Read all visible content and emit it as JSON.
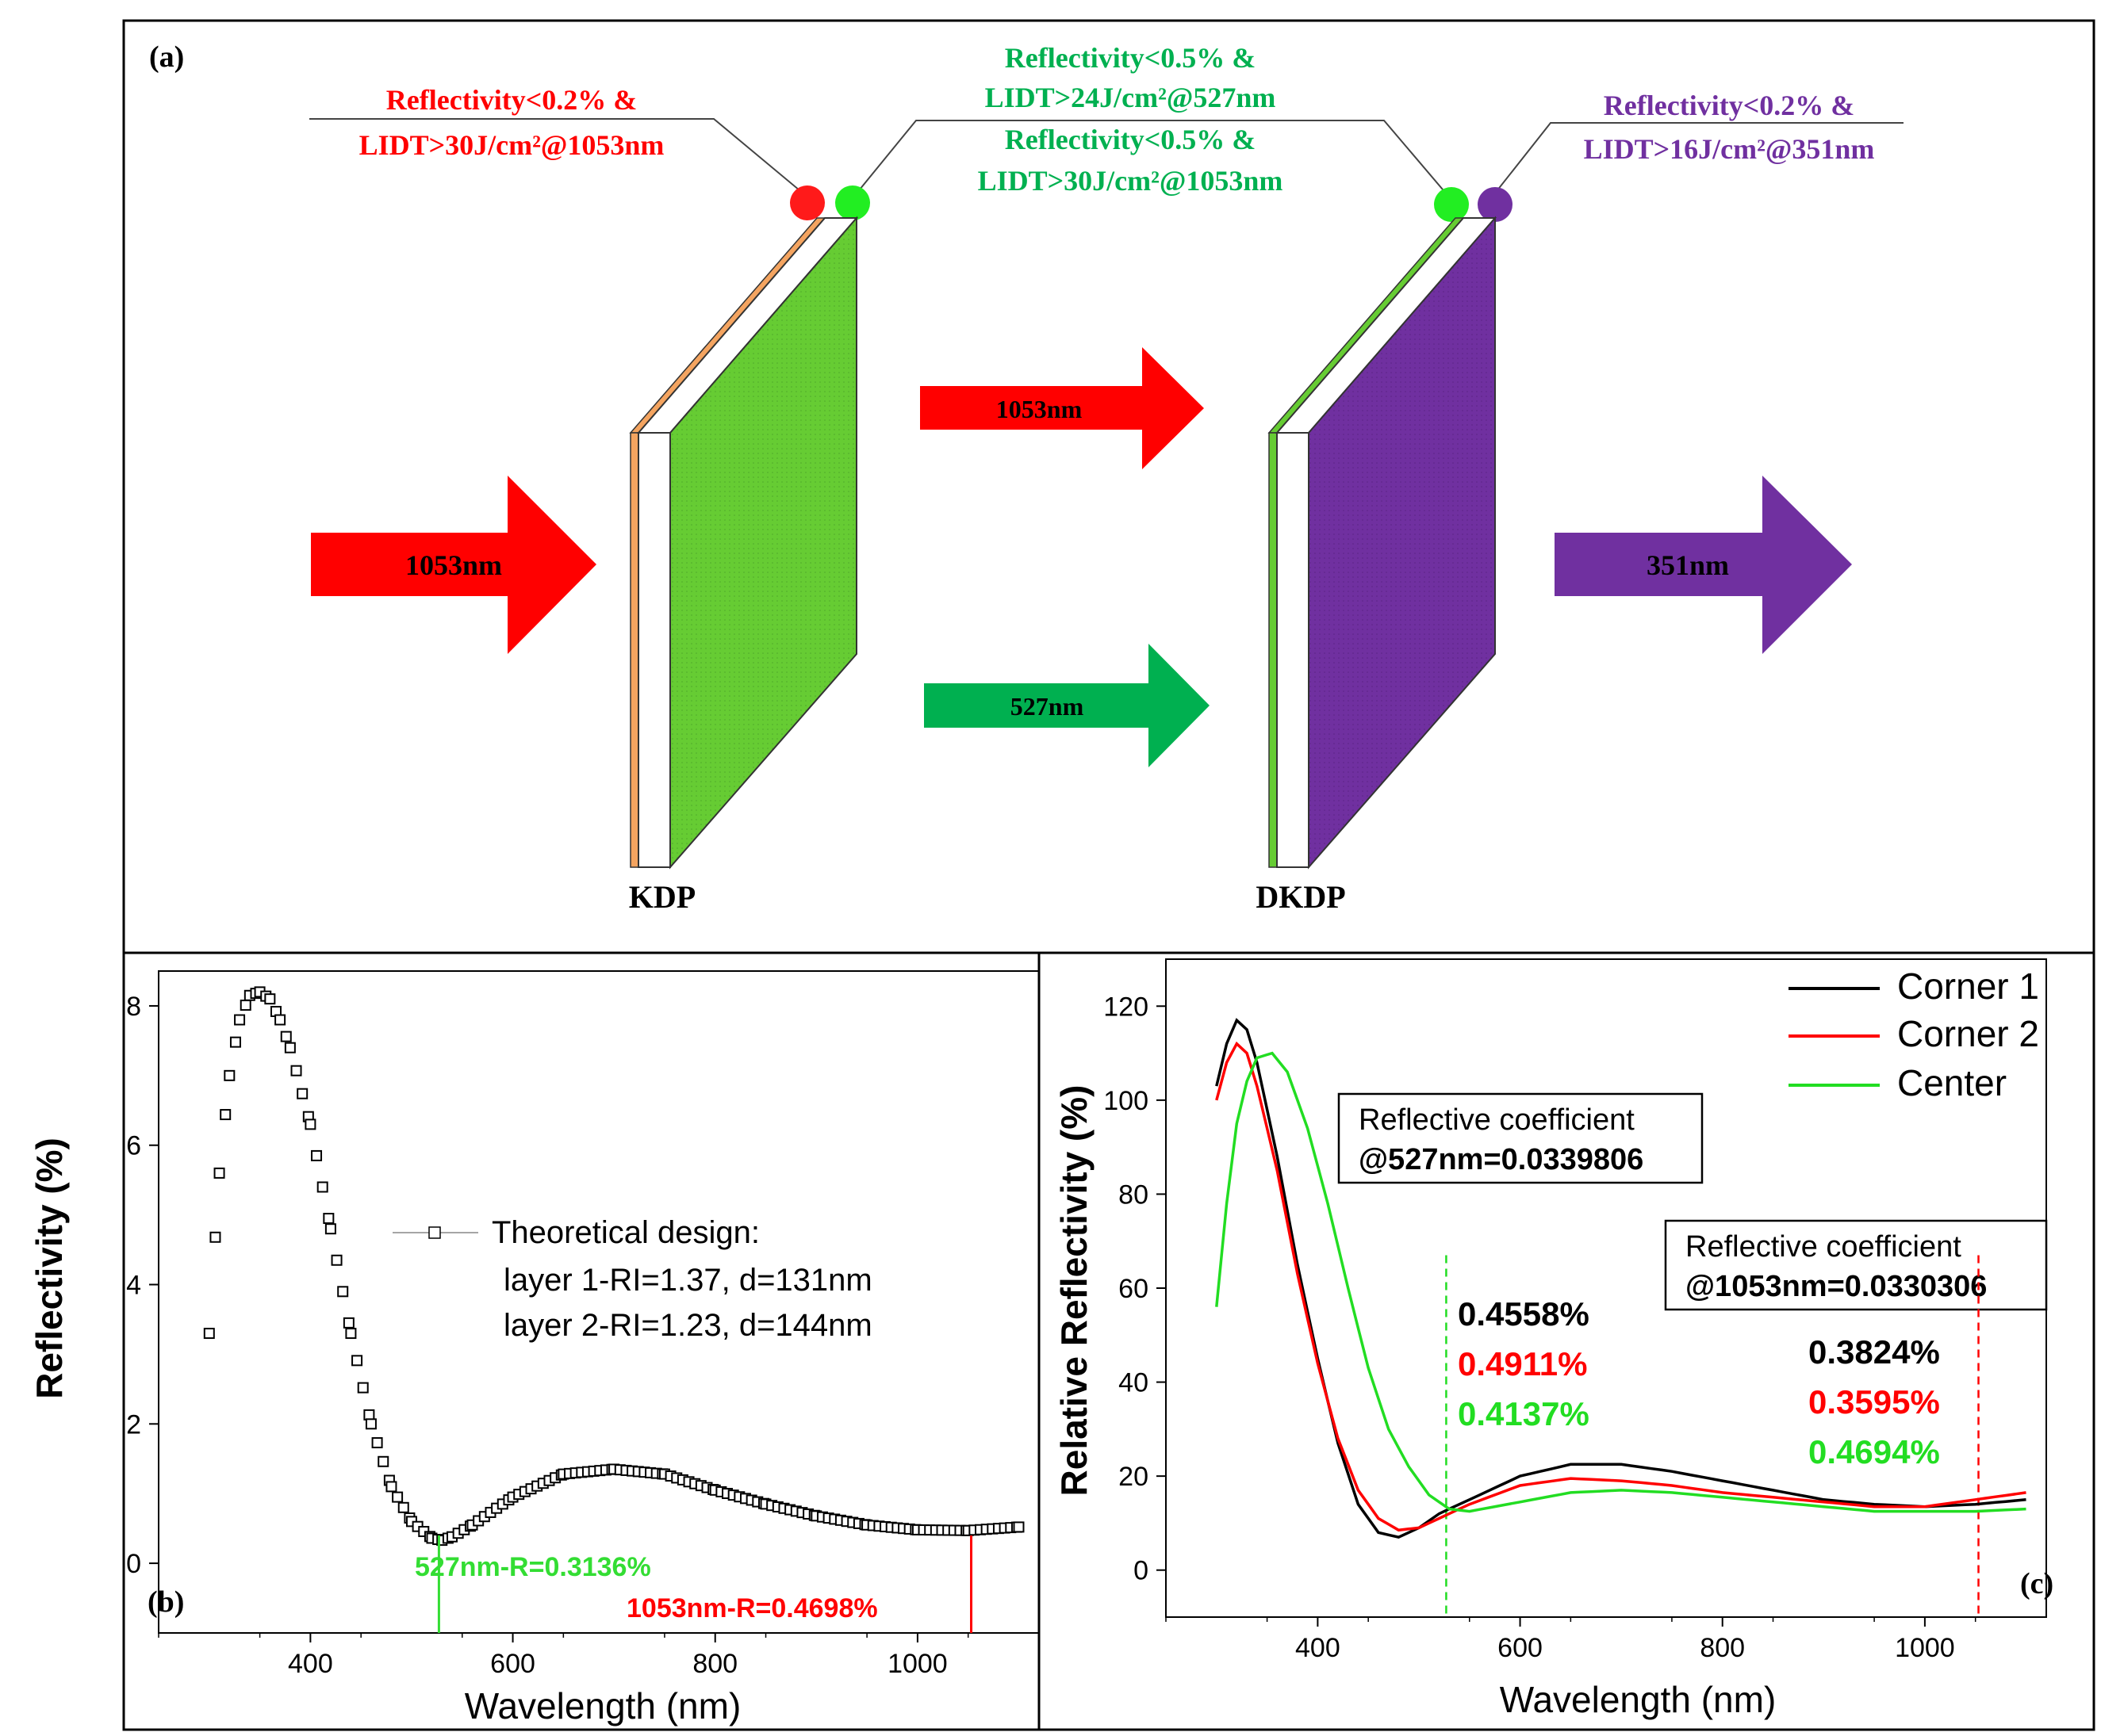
{
  "panel_a": {
    "label": "(a)",
    "kdp_label": "KDP",
    "dkdp_label": "DKDP",
    "ann_left": [
      "Reflectivity<0.2% &",
      "LIDT>30J/cm²@1053nm"
    ],
    "ann_mid": [
      "Reflectivity<0.5% &",
      "LIDT>24J/cm²@527nm",
      "Reflectivity<0.5% &",
      "LIDT>30J/cm²@1053nm"
    ],
    "ann_right": [
      "Reflectivity<0.2% &",
      "LIDT>16J/cm²@351nm"
    ],
    "arrow_in": "1053nm",
    "arrow_mid_top": "1053nm",
    "arrow_mid_bottom": "527nm",
    "arrow_out": "351nm",
    "colors": {
      "red": "#ff0000",
      "green": "#00b050",
      "lightgreen": "#66cc33",
      "purple": "#7030a0",
      "orange": "#f4a460"
    }
  },
  "chart_data": [
    {
      "type": "scatter",
      "panel_label": "(b)",
      "xlabel": "Wavelength (nm)",
      "ylabel": "Reflectivity (%)",
      "xlim": [
        250,
        1120
      ],
      "ylim": [
        -1,
        8.5
      ],
      "xticks": [
        400,
        600,
        800,
        1000
      ],
      "yticks": [
        0,
        2,
        4,
        6,
        8
      ],
      "legend": [
        "Theoretical design:",
        "layer 1-RI=1.37, d=131nm",
        "layer 2-RI=1.23, d=144nm"
      ],
      "series": [
        {
          "name": "Theoretical design",
          "x": [
            300,
            310,
            320,
            330,
            340,
            350,
            360,
            370,
            380,
            400,
            420,
            440,
            460,
            480,
            500,
            520,
            530,
            540,
            560,
            600,
            650,
            700,
            750,
            800,
            850,
            900,
            950,
            1000,
            1050,
            1100
          ],
          "y": [
            3.3,
            5.6,
            7.0,
            7.8,
            8.15,
            8.2,
            8.1,
            7.8,
            7.4,
            6.3,
            4.8,
            3.3,
            2.0,
            1.1,
            0.6,
            0.36,
            0.33,
            0.38,
            0.55,
            0.95,
            1.28,
            1.35,
            1.28,
            1.05,
            0.85,
            0.68,
            0.55,
            0.48,
            0.47,
            0.52
          ]
        }
      ],
      "markers": [
        {
          "x": 527,
          "label": "527nm-R=0.3136%",
          "color": "#33dd33"
        },
        {
          "x": 1053,
          "label": "1053nm-R=0.4698%",
          "color": "#ff0000"
        }
      ]
    },
    {
      "type": "line",
      "panel_label": "(c)",
      "xlabel": "Wavelength (nm)",
      "ylabel": "Relative Reflectivity (%)",
      "xlim": [
        250,
        1120
      ],
      "ylim": [
        -10,
        130
      ],
      "xticks": [
        400,
        600,
        800,
        1000
      ],
      "yticks": [
        0,
        20,
        40,
        60,
        80,
        100,
        120
      ],
      "series": [
        {
          "name": "Corner 1",
          "color": "#000000",
          "x": [
            300,
            310,
            320,
            330,
            340,
            360,
            380,
            400,
            420,
            440,
            460,
            480,
            500,
            520,
            550,
            600,
            650,
            700,
            750,
            800,
            850,
            900,
            950,
            1000,
            1050,
            1100
          ],
          "y": [
            103,
            112,
            117,
            115,
            108,
            88,
            65,
            45,
            27,
            14,
            8,
            7,
            9,
            12,
            15,
            20,
            22.5,
            22.5,
            21,
            19,
            17,
            15,
            14,
            13.5,
            14,
            15
          ]
        },
        {
          "name": "Corner 2",
          "color": "#ff0000",
          "x": [
            300,
            310,
            320,
            330,
            340,
            360,
            380,
            400,
            420,
            440,
            460,
            480,
            500,
            520,
            550,
            600,
            650,
            700,
            750,
            800,
            850,
            900,
            950,
            1000,
            1050,
            1100
          ],
          "y": [
            100,
            108,
            112,
            110,
            103,
            85,
            63,
            44,
            28,
            17,
            11,
            8.5,
            9,
            11,
            14,
            18,
            19.5,
            19,
            18,
            16.5,
            15.5,
            14.5,
            13.5,
            13.5,
            15,
            16.5
          ]
        },
        {
          "name": "Center",
          "color": "#22dd22",
          "x": [
            300,
            310,
            320,
            330,
            340,
            355,
            370,
            390,
            410,
            430,
            450,
            470,
            490,
            510,
            530,
            550,
            600,
            650,
            700,
            750,
            800,
            850,
            900,
            950,
            1000,
            1050,
            1100
          ],
          "y": [
            56,
            78,
            95,
            104,
            109,
            110,
            106,
            94,
            78,
            60,
            43,
            30,
            22,
            16,
            13,
            12.5,
            14.5,
            16.5,
            17,
            16.5,
            15.5,
            14.5,
            13.5,
            12.5,
            12.5,
            12.5,
            13
          ]
        }
      ],
      "legend_position": "top-right",
      "coef_boxes": [
        {
          "line1": "Reflective coefficient",
          "line2": "@527nm=0.0339806"
        },
        {
          "line1": "Reflective coefficient",
          "line2": "@1053nm=0.0330306"
        }
      ],
      "annotations_527": [
        {
          "text": "0.4558%",
          "color": "#000000"
        },
        {
          "text": "0.4911%",
          "color": "#ff0000"
        },
        {
          "text": "0.4137%",
          "color": "#22dd22"
        }
      ],
      "annotations_1053": [
        {
          "text": "0.3824%",
          "color": "#000000"
        },
        {
          "text": "0.3595%",
          "color": "#ff0000"
        },
        {
          "text": "0.4694%",
          "color": "#22dd22"
        }
      ],
      "markers": [
        {
          "x": 527,
          "color": "#22dd22"
        },
        {
          "x": 1053,
          "color": "#ff0000"
        }
      ]
    }
  ]
}
